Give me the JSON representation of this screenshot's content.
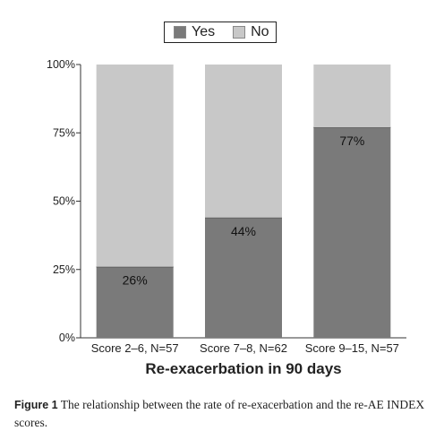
{
  "chart_data": {
    "type": "bar",
    "stacked": true,
    "categories": [
      "Score 2–6, N=57",
      "Score 7–8, N=62",
      "Score 9–15, N=57"
    ],
    "series": [
      {
        "name": "Yes",
        "values": [
          26,
          44,
          77
        ],
        "color": "#7a7a7a"
      },
      {
        "name": "No",
        "values": [
          74,
          56,
          23
        ],
        "color": "#c8c8c8"
      }
    ],
    "data_labels": [
      "26%",
      "44%",
      "77%"
    ],
    "yticks": [
      "0%",
      "25%",
      "50%",
      "75%",
      "100%"
    ],
    "ylim": [
      0,
      100
    ],
    "xlabel": "Re-exacerbation in 90 days",
    "ylabel": "",
    "legend_position": "top-center",
    "grid": false
  },
  "caption": {
    "label": "Figure 1",
    "text": "The relationship between the rate of re-exacerbation and the re-AE INDEX scores."
  }
}
